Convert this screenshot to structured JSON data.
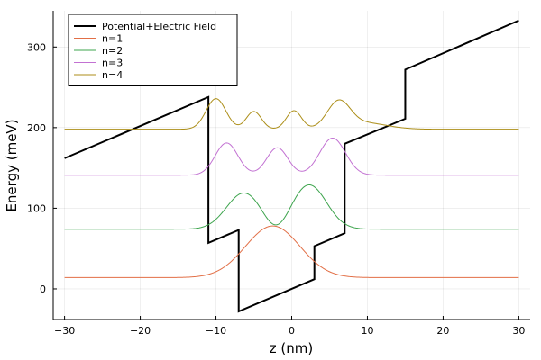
{
  "chart_data": {
    "type": "line",
    "title": "",
    "xlabel": "z (nm)",
    "ylabel": "Energy (meV)",
    "xlim": [
      -31.5,
      31.5
    ],
    "ylim": [
      -38,
      345
    ],
    "xticks": [
      -30,
      -20,
      -10,
      0,
      10,
      20,
      30
    ],
    "yticks": [
      0,
      100,
      200,
      300
    ],
    "grid": true,
    "legend_position": "top-left",
    "series": [
      {
        "name": "Potential+Electric Field",
        "color": "#000000",
        "kind": "polyline",
        "x": [
          -30,
          -11,
          -11,
          -7,
          -7,
          3,
          3,
          7,
          7,
          15,
          15,
          30
        ],
        "y": [
          162,
          238,
          57,
          73,
          -28,
          12,
          53,
          69,
          180,
          211,
          272,
          333
        ]
      },
      {
        "name": "n=1",
        "color": "#e26f46",
        "kind": "wavefunction",
        "energy": 14,
        "range": [
          -30,
          30
        ],
        "components": [
          {
            "a": 64,
            "c": -2.5,
            "s": 3.6
          }
        ]
      },
      {
        "name": "n=2",
        "color": "#3da44d",
        "kind": "wavefunction",
        "energy": 74,
        "range": [
          -30,
          30
        ],
        "components": [
          {
            "a": 45,
            "c": -6.3,
            "s": 2.3
          },
          {
            "a": 55,
            "c": 2.3,
            "s": 2.3
          },
          {
            "a": -12,
            "c": -2.0,
            "s": 1.4
          }
        ]
      },
      {
        "name": "n=3",
        "color": "#c271d2",
        "kind": "wavefunction",
        "energy": 141,
        "range": [
          -30,
          30
        ],
        "components": [
          {
            "a": 40,
            "c": -8.6,
            "s": 1.5
          },
          {
            "a": 34,
            "c": -1.9,
            "s": 1.4
          },
          {
            "a": 46,
            "c": 5.4,
            "s": 1.7
          }
        ]
      },
      {
        "name": "n=4",
        "color": "#ac8e18",
        "kind": "wavefunction",
        "energy": 198,
        "range": [
          -30,
          30
        ],
        "components": [
          {
            "a": 38,
            "c": -10.0,
            "s": 1.3
          },
          {
            "a": 22,
            "c": -5.0,
            "s": 1.0
          },
          {
            "a": 23,
            "c": 0.3,
            "s": 1.0
          },
          {
            "a": 32,
            "c": 6.2,
            "s": 1.5
          },
          {
            "a": 8,
            "c": 9.5,
            "s": 3.0
          }
        ]
      }
    ]
  }
}
